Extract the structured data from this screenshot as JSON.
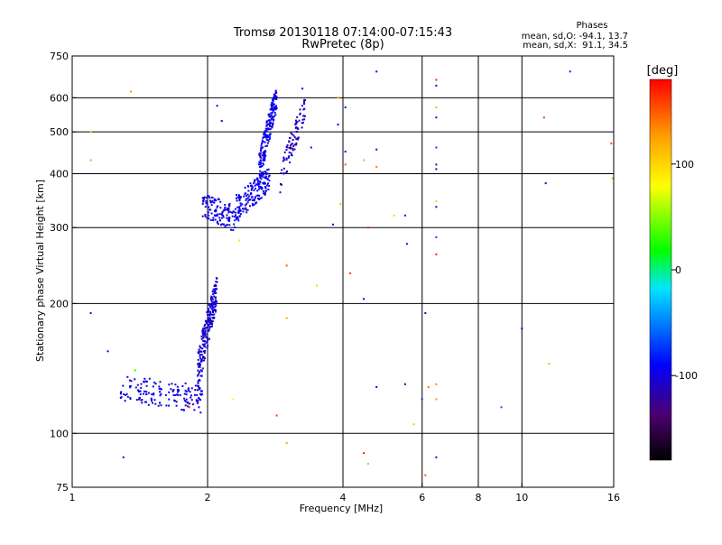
{
  "chart_data": {
    "type": "scatter",
    "title": "Tromsø 20130118 07:14:00-07:15:43",
    "subtitle": "RwPretec (8p)",
    "xlabel": "Frequency [MHz]",
    "ylabel": "Stationary phase Virtual Height [km]",
    "x_scale": "log",
    "y_scale": "log",
    "xlim": [
      1,
      16
    ],
    "ylim": [
      75,
      750
    ],
    "x_ticks": [
      1,
      2,
      4,
      6,
      8,
      10,
      16
    ],
    "x_tick_labels": [
      "1",
      "2",
      "4",
      "6",
      "8",
      "10",
      "16"
    ],
    "y_ticks": [
      75,
      100,
      200,
      300,
      400,
      500,
      600,
      750
    ],
    "y_tick_labels": [
      "75",
      "100",
      "200",
      "300",
      "400",
      "500",
      "600",
      "750"
    ],
    "grid": true,
    "phase_stats": {
      "heading": "Phases",
      "line1": "mean, sd,O: -94.1, 13.7",
      "line2": "mean, sd,X:  91.1, 34.5"
    },
    "colorbar": {
      "label": "[deg]",
      "range": [
        -180,
        180
      ],
      "ticks": [
        100,
        0,
        -100
      ],
      "tick_labels": [
        "100",
        "0",
        "-100"
      ]
    },
    "traces": [
      {
        "x_range": [
          1.28,
          1.95
        ],
        "y_base": [
          128,
          120
        ],
        "y_spread": 9,
        "n": 150,
        "phase": -100
      },
      {
        "x_range": [
          1.9,
          2.1
        ],
        "y_base": [
          135,
          215
        ],
        "y_spread": 18,
        "n": 230,
        "phase": -105
      },
      {
        "x_range": [
          1.95,
          2.3
        ],
        "y_base": [
          340,
          315
        ],
        "y_spread": 22,
        "n": 120,
        "phase": -100
      },
      {
        "x_range": [
          2.3,
          2.75
        ],
        "y_base": [
          330,
          390
        ],
        "y_spread": 25,
        "n": 170,
        "phase": -95
      },
      {
        "x_range": [
          2.6,
          2.85
        ],
        "y_base": [
          400,
          600
        ],
        "y_spread": 40,
        "n": 200,
        "phase": -98
      },
      {
        "x_range": [
          2.9,
          3.3
        ],
        "y_base": [
          380,
          570
        ],
        "y_spread": 35,
        "n": 90,
        "phase": -110
      }
    ],
    "scatter_points": [
      {
        "x": 1.35,
        "y": 620,
        "phase": 130
      },
      {
        "x": 1.1,
        "y": 500,
        "phase": 40
      },
      {
        "x": 1.1,
        "y": 430,
        "phase": 35
      },
      {
        "x": 1.1,
        "y": 190,
        "phase": -85
      },
      {
        "x": 1.2,
        "y": 155,
        "phase": -95
      },
      {
        "x": 1.38,
        "y": 140,
        "phase": 25
      },
      {
        "x": 1.3,
        "y": 88,
        "phase": -110
      },
      {
        "x": 1.82,
        "y": 115,
        "phase": 170
      },
      {
        "x": 2.1,
        "y": 575,
        "phase": -100
      },
      {
        "x": 2.15,
        "y": 530,
        "phase": -100
      },
      {
        "x": 2.35,
        "y": 280,
        "phase": 90
      },
      {
        "x": 2.28,
        "y": 120,
        "phase": 80
      },
      {
        "x": 2.85,
        "y": 110,
        "phase": 160
      },
      {
        "x": 3.0,
        "y": 245,
        "phase": 150
      },
      {
        "x": 3.0,
        "y": 185,
        "phase": 120
      },
      {
        "x": 3.0,
        "y": 95,
        "phase": 125
      },
      {
        "x": 3.25,
        "y": 630,
        "phase": -110
      },
      {
        "x": 3.4,
        "y": 460,
        "phase": -120
      },
      {
        "x": 3.5,
        "y": 220,
        "phase": 60
      },
      {
        "x": 3.8,
        "y": 305,
        "phase": -115
      },
      {
        "x": 3.9,
        "y": 600,
        "phase": 120
      },
      {
        "x": 3.9,
        "y": 520,
        "phase": -90
      },
      {
        "x": 3.95,
        "y": 340,
        "phase": 45
      },
      {
        "x": 4.05,
        "y": 570,
        "phase": -100
      },
      {
        "x": 4.05,
        "y": 450,
        "phase": -100
      },
      {
        "x": 4.05,
        "y": 420,
        "phase": 150
      },
      {
        "x": 4.15,
        "y": 235,
        "phase": 160
      },
      {
        "x": 4.45,
        "y": 430,
        "phase": 120
      },
      {
        "x": 4.55,
        "y": 300,
        "phase": 170
      },
      {
        "x": 4.45,
        "y": 205,
        "phase": -90
      },
      {
        "x": 4.45,
        "y": 90,
        "phase": 175
      },
      {
        "x": 4.55,
        "y": 85,
        "phase": 40
      },
      {
        "x": 4.75,
        "y": 690,
        "phase": -110
      },
      {
        "x": 4.75,
        "y": 455,
        "phase": -110
      },
      {
        "x": 4.75,
        "y": 415,
        "phase": 140
      },
      {
        "x": 4.75,
        "y": 128,
        "phase": -100
      },
      {
        "x": 5.2,
        "y": 320,
        "phase": 60
      },
      {
        "x": 5.5,
        "y": 320,
        "phase": -100
      },
      {
        "x": 5.55,
        "y": 275,
        "phase": -110
      },
      {
        "x": 5.5,
        "y": 130,
        "phase": -110
      },
      {
        "x": 5.75,
        "y": 105,
        "phase": 110
      },
      {
        "x": 6.1,
        "y": 190,
        "phase": -110
      },
      {
        "x": 6.1,
        "y": 80,
        "phase": 150
      },
      {
        "x": 6.0,
        "y": 120,
        "phase": -80
      },
      {
        "x": 6.2,
        "y": 128,
        "phase": 140
      },
      {
        "x": 6.45,
        "y": 660,
        "phase": 170
      },
      {
        "x": 6.45,
        "y": 640,
        "phase": -100
      },
      {
        "x": 6.45,
        "y": 570,
        "phase": 120
      },
      {
        "x": 6.45,
        "y": 540,
        "phase": -110
      },
      {
        "x": 6.45,
        "y": 460,
        "phase": -70
      },
      {
        "x": 6.45,
        "y": 420,
        "phase": -140
      },
      {
        "x": 6.45,
        "y": 410,
        "phase": -120
      },
      {
        "x": 6.45,
        "y": 345,
        "phase": 100
      },
      {
        "x": 6.45,
        "y": 335,
        "phase": -110
      },
      {
        "x": 6.45,
        "y": 285,
        "phase": -70
      },
      {
        "x": 6.45,
        "y": 260,
        "phase": 170
      },
      {
        "x": 6.45,
        "y": 130,
        "phase": 130
      },
      {
        "x": 6.45,
        "y": 120,
        "phase": 130
      },
      {
        "x": 6.45,
        "y": 88,
        "phase": -120
      },
      {
        "x": 9.0,
        "y": 115,
        "phase": -60
      },
      {
        "x": 10.0,
        "y": 175,
        "phase": -100
      },
      {
        "x": 11.2,
        "y": 540,
        "phase": 160
      },
      {
        "x": 11.3,
        "y": 380,
        "phase": -130
      },
      {
        "x": 11.5,
        "y": 145,
        "phase": 120
      },
      {
        "x": 12.8,
        "y": 690,
        "phase": -80
      },
      {
        "x": 15.8,
        "y": 470,
        "phase": 150
      },
      {
        "x": 15.9,
        "y": 390,
        "phase": 120
      }
    ]
  }
}
